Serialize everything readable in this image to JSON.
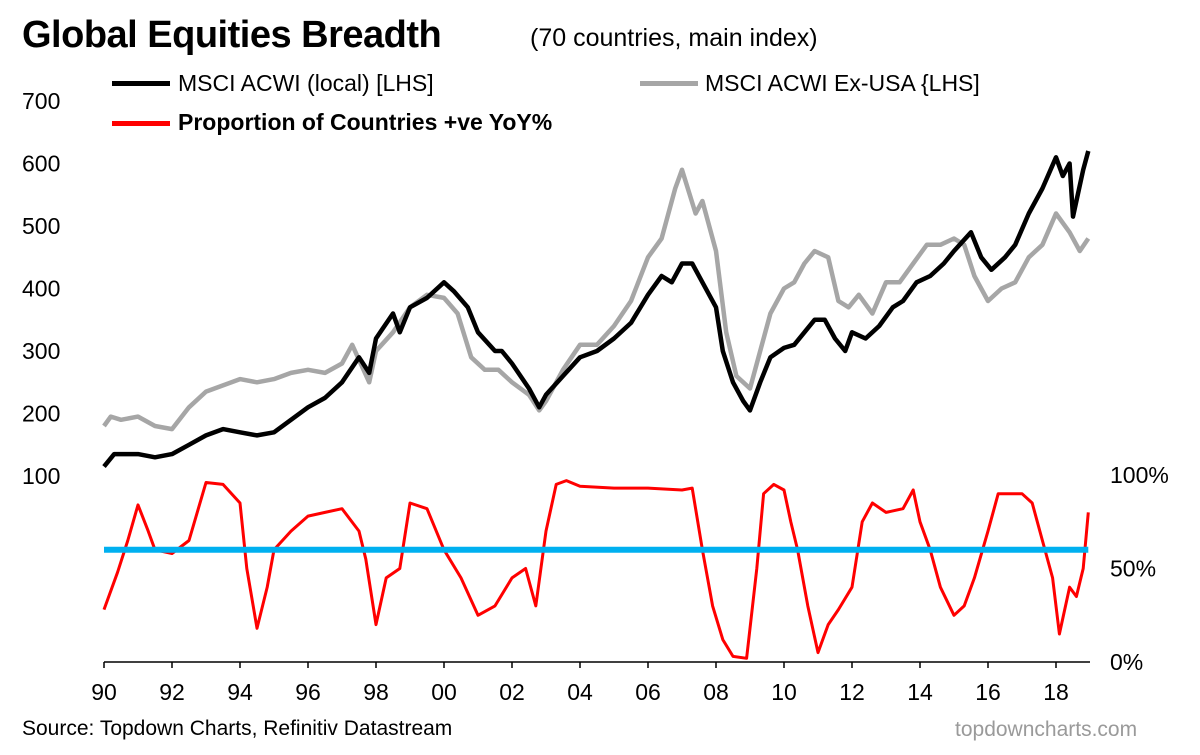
{
  "chart_data": {
    "type": "line",
    "title": "Global Equities Breadth",
    "subtitle": "(70 countries, main index)",
    "source": "Source: Topdown Charts, Refinitiv Datastream",
    "watermark": "topdowncharts.com",
    "legend": [
      {
        "label": "MSCI ACWI (local) [LHS]",
        "color": "#000000"
      },
      {
        "label": "MSCI ACWI Ex-USA {LHS]",
        "color": "#a6a6a6"
      },
      {
        "label": "Proportion of Countries +ve YoY%",
        "color": "#ff0000"
      }
    ],
    "left_axis": {
      "range": [
        0,
        700
      ],
      "ticks": [
        "100",
        "200",
        "300",
        "400",
        "500",
        "600",
        "700"
      ],
      "tick_values": [
        100,
        200,
        300,
        400,
        500,
        600,
        700
      ]
    },
    "right_axis": {
      "range": [
        0,
        100
      ],
      "ticks": [
        "0%",
        "50%",
        "100%"
      ],
      "tick_values": [
        0,
        50,
        100
      ]
    },
    "x_axis": {
      "range": [
        1990,
        2019
      ],
      "ticks": [
        "90",
        "92",
        "94",
        "96",
        "98",
        "00",
        "02",
        "04",
        "06",
        "08",
        "10",
        "12",
        "14",
        "16",
        "18"
      ],
      "tick_values": [
        1990,
        1992,
        1994,
        1996,
        1998,
        2000,
        2002,
        2004,
        2006,
        2008,
        2010,
        2012,
        2014,
        2016,
        2018
      ]
    },
    "reference_line": {
      "value": 60,
      "axis": "right",
      "color": "#00b0f0"
    },
    "series": [
      {
        "name": "MSCI ACWI (local) [LHS]",
        "axis": "left",
        "color": "#000000",
        "points": [
          [
            1990,
            115
          ],
          [
            1990.3,
            135
          ],
          [
            1991,
            135
          ],
          [
            1991.5,
            130
          ],
          [
            1992,
            135
          ],
          [
            1992.5,
            150
          ],
          [
            1993,
            165
          ],
          [
            1993.5,
            175
          ],
          [
            1994,
            170
          ],
          [
            1994.5,
            165
          ],
          [
            1995,
            170
          ],
          [
            1995.5,
            190
          ],
          [
            1996,
            210
          ],
          [
            1996.5,
            225
          ],
          [
            1997,
            250
          ],
          [
            1997.5,
            290
          ],
          [
            1997.8,
            265
          ],
          [
            1998,
            320
          ],
          [
            1998.5,
            360
          ],
          [
            1998.7,
            330
          ],
          [
            1999,
            370
          ],
          [
            1999.5,
            385
          ],
          [
            2000,
            410
          ],
          [
            2000.3,
            395
          ],
          [
            2000.7,
            370
          ],
          [
            2001,
            330
          ],
          [
            2001.5,
            300
          ],
          [
            2001.7,
            300
          ],
          [
            2002,
            280
          ],
          [
            2002.5,
            240
          ],
          [
            2002.8,
            210
          ],
          [
            2003,
            230
          ],
          [
            2003.5,
            260
          ],
          [
            2004,
            290
          ],
          [
            2004.5,
            300
          ],
          [
            2005,
            320
          ],
          [
            2005.5,
            345
          ],
          [
            2006,
            390
          ],
          [
            2006.4,
            420
          ],
          [
            2006.7,
            410
          ],
          [
            2007,
            440
          ],
          [
            2007.3,
            440
          ],
          [
            2007.6,
            410
          ],
          [
            2008,
            370
          ],
          [
            2008.2,
            300
          ],
          [
            2008.5,
            250
          ],
          [
            2008.8,
            220
          ],
          [
            2009,
            205
          ],
          [
            2009.3,
            250
          ],
          [
            2009.6,
            290
          ],
          [
            2010,
            305
          ],
          [
            2010.3,
            310
          ],
          [
            2010.6,
            330
          ],
          [
            2010.9,
            350
          ],
          [
            2011.2,
            350
          ],
          [
            2011.5,
            320
          ],
          [
            2011.8,
            300
          ],
          [
            2012,
            330
          ],
          [
            2012.4,
            320
          ],
          [
            2012.8,
            340
          ],
          [
            2013.2,
            370
          ],
          [
            2013.5,
            380
          ],
          [
            2013.9,
            410
          ],
          [
            2014.3,
            420
          ],
          [
            2014.7,
            440
          ],
          [
            2015,
            460
          ],
          [
            2015.5,
            490
          ],
          [
            2015.8,
            450
          ],
          [
            2016.1,
            430
          ],
          [
            2016.5,
            450
          ],
          [
            2016.8,
            470
          ],
          [
            2017.2,
            520
          ],
          [
            2017.6,
            560
          ],
          [
            2018,
            610
          ],
          [
            2018.2,
            580
          ],
          [
            2018.4,
            600
          ],
          [
            2018.5,
            515
          ],
          [
            2018.8,
            590
          ],
          [
            2018.95,
            620
          ]
        ]
      },
      {
        "name": "MSCI ACWI Ex-USA {LHS]",
        "axis": "left",
        "color": "#a6a6a6",
        "points": [
          [
            1990,
            180
          ],
          [
            1990.2,
            195
          ],
          [
            1990.5,
            190
          ],
          [
            1991,
            195
          ],
          [
            1991.5,
            180
          ],
          [
            1992,
            175
          ],
          [
            1992.5,
            210
          ],
          [
            1993,
            235
          ],
          [
            1993.5,
            245
          ],
          [
            1994,
            255
          ],
          [
            1994.5,
            250
          ],
          [
            1995,
            255
          ],
          [
            1995.5,
            265
          ],
          [
            1996,
            270
          ],
          [
            1996.5,
            265
          ],
          [
            1997,
            280
          ],
          [
            1997.3,
            310
          ],
          [
            1997.8,
            250
          ],
          [
            1998,
            300
          ],
          [
            1998.5,
            330
          ],
          [
            1999,
            370
          ],
          [
            1999.5,
            390
          ],
          [
            2000,
            385
          ],
          [
            2000.4,
            360
          ],
          [
            2000.8,
            290
          ],
          [
            2001.2,
            270
          ],
          [
            2001.6,
            270
          ],
          [
            2002,
            250
          ],
          [
            2002.5,
            230
          ],
          [
            2002.8,
            205
          ],
          [
            2003,
            220
          ],
          [
            2003.5,
            270
          ],
          [
            2004,
            310
          ],
          [
            2004.5,
            310
          ],
          [
            2005,
            340
          ],
          [
            2005.5,
            380
          ],
          [
            2006,
            450
          ],
          [
            2006.4,
            480
          ],
          [
            2006.8,
            560
          ],
          [
            2007,
            590
          ],
          [
            2007.4,
            520
          ],
          [
            2007.6,
            540
          ],
          [
            2008,
            460
          ],
          [
            2008.3,
            330
          ],
          [
            2008.6,
            260
          ],
          [
            2009,
            240
          ],
          [
            2009.3,
            300
          ],
          [
            2009.6,
            360
          ],
          [
            2010,
            400
          ],
          [
            2010.3,
            410
          ],
          [
            2010.6,
            440
          ],
          [
            2010.9,
            460
          ],
          [
            2011.3,
            450
          ],
          [
            2011.6,
            380
          ],
          [
            2011.9,
            370
          ],
          [
            2012.2,
            390
          ],
          [
            2012.6,
            360
          ],
          [
            2013,
            410
          ],
          [
            2013.4,
            410
          ],
          [
            2013.8,
            440
          ],
          [
            2014.2,
            470
          ],
          [
            2014.6,
            470
          ],
          [
            2015,
            480
          ],
          [
            2015.3,
            470
          ],
          [
            2015.6,
            420
          ],
          [
            2016,
            380
          ],
          [
            2016.4,
            400
          ],
          [
            2016.8,
            410
          ],
          [
            2017.2,
            450
          ],
          [
            2017.6,
            470
          ],
          [
            2018,
            520
          ],
          [
            2018.4,
            490
          ],
          [
            2018.7,
            460
          ],
          [
            2018.95,
            480
          ]
        ]
      },
      {
        "name": "Proportion of Countries +ve YoY%",
        "axis": "right",
        "color": "#ff0000",
        "points": [
          [
            1990,
            28
          ],
          [
            1990.4,
            48
          ],
          [
            1990.7,
            65
          ],
          [
            1991,
            84
          ],
          [
            1991.3,
            70
          ],
          [
            1991.5,
            60
          ],
          [
            1992,
            58
          ],
          [
            1992.5,
            65
          ],
          [
            1993,
            96
          ],
          [
            1993.5,
            95
          ],
          [
            1994,
            85
          ],
          [
            1994.2,
            50
          ],
          [
            1994.5,
            18
          ],
          [
            1994.8,
            40
          ],
          [
            1995,
            60
          ],
          [
            1995.5,
            70
          ],
          [
            1996,
            78
          ],
          [
            1996.5,
            80
          ],
          [
            1997,
            82
          ],
          [
            1997.5,
            70
          ],
          [
            1997.7,
            55
          ],
          [
            1998,
            20
          ],
          [
            1998.3,
            45
          ],
          [
            1998.7,
            50
          ],
          [
            1999,
            85
          ],
          [
            1999.5,
            82
          ],
          [
            2000,
            60
          ],
          [
            2000.5,
            45
          ],
          [
            2001,
            25
          ],
          [
            2001.5,
            30
          ],
          [
            2002,
            45
          ],
          [
            2002.4,
            50
          ],
          [
            2002.7,
            30
          ],
          [
            2003,
            70
          ],
          [
            2003.3,
            95
          ],
          [
            2003.6,
            97
          ],
          [
            2004,
            94
          ],
          [
            2005,
            93
          ],
          [
            2006,
            93
          ],
          [
            2007,
            92
          ],
          [
            2007.3,
            93
          ],
          [
            2007.6,
            60
          ],
          [
            2007.9,
            30
          ],
          [
            2008.2,
            12
          ],
          [
            2008.5,
            3
          ],
          [
            2008.9,
            2
          ],
          [
            2009.2,
            50
          ],
          [
            2009.4,
            90
          ],
          [
            2009.7,
            95
          ],
          [
            2010,
            92
          ],
          [
            2010.2,
            75
          ],
          [
            2010.4,
            60
          ],
          [
            2010.7,
            30
          ],
          [
            2011,
            5
          ],
          [
            2011.3,
            20
          ],
          [
            2011.6,
            28
          ],
          [
            2012,
            40
          ],
          [
            2012.3,
            75
          ],
          [
            2012.6,
            85
          ],
          [
            2013,
            80
          ],
          [
            2013.5,
            82
          ],
          [
            2013.8,
            92
          ],
          [
            2014,
            75
          ],
          [
            2014.3,
            60
          ],
          [
            2014.6,
            40
          ],
          [
            2015,
            25
          ],
          [
            2015.3,
            30
          ],
          [
            2015.6,
            45
          ],
          [
            2016,
            70
          ],
          [
            2016.3,
            90
          ],
          [
            2016.7,
            90
          ],
          [
            2017,
            90
          ],
          [
            2017.3,
            85
          ],
          [
            2017.6,
            65
          ],
          [
            2017.9,
            45
          ],
          [
            2018.1,
            15
          ],
          [
            2018.4,
            40
          ],
          [
            2018.6,
            35
          ],
          [
            2018.8,
            50
          ],
          [
            2018.95,
            80
          ]
        ]
      }
    ]
  }
}
